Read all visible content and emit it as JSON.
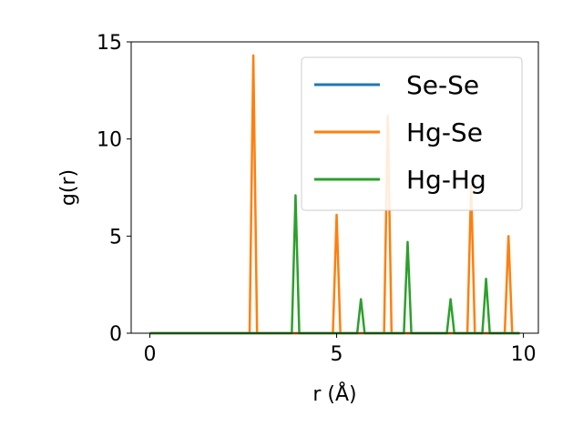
{
  "chart_data": {
    "type": "line",
    "xlabel": "r (Å)",
    "ylabel": "g(r)",
    "xlim": [
      -0.5,
      10.4
    ],
    "ylim": [
      0,
      15
    ],
    "xticks": [
      0,
      5,
      10
    ],
    "yticks": [
      0,
      5,
      10,
      15
    ],
    "grid": false,
    "legend_position": "top-right",
    "series": [
      {
        "name": "Se-Se",
        "color": "#1f77b4",
        "x": [
          0,
          9.9
        ],
        "y": [
          0,
          0
        ]
      },
      {
        "name": "Hg-Se",
        "color": "#ff7f0e",
        "x": [
          0,
          2.67,
          2.77,
          2.87,
          4.9,
          5.0,
          5.1,
          6.27,
          6.37,
          6.47,
          8.5,
          8.6,
          8.7,
          9.5,
          9.6,
          9.7,
          9.9
        ],
        "y": [
          0,
          0,
          14.3,
          0,
          0,
          6.1,
          0,
          0,
          11.2,
          0,
          0,
          7.6,
          0,
          0,
          5.0,
          0,
          0
        ]
      },
      {
        "name": "Hg-Hg",
        "color": "#2ca02c",
        "x": [
          0,
          3.8,
          3.9,
          4.0,
          5.55,
          5.65,
          5.75,
          6.8,
          6.9,
          7.0,
          7.95,
          8.05,
          8.15,
          8.9,
          9.0,
          9.1,
          9.9
        ],
        "y": [
          0,
          0,
          7.1,
          0,
          0,
          1.75,
          0,
          0,
          4.7,
          0,
          0,
          1.75,
          0,
          0,
          2.8,
          0,
          0
        ]
      }
    ]
  }
}
